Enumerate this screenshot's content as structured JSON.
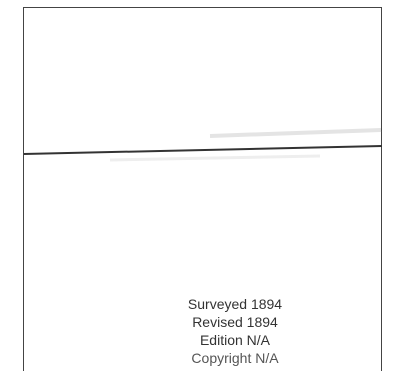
{
  "map": {
    "line_color": "#333333",
    "frame_color": "#444444"
  },
  "info": {
    "surveyed": "Surveyed 1894",
    "revised": "Revised 1894",
    "edition": "Edition N/A",
    "copyright": "Copyright N/A"
  }
}
